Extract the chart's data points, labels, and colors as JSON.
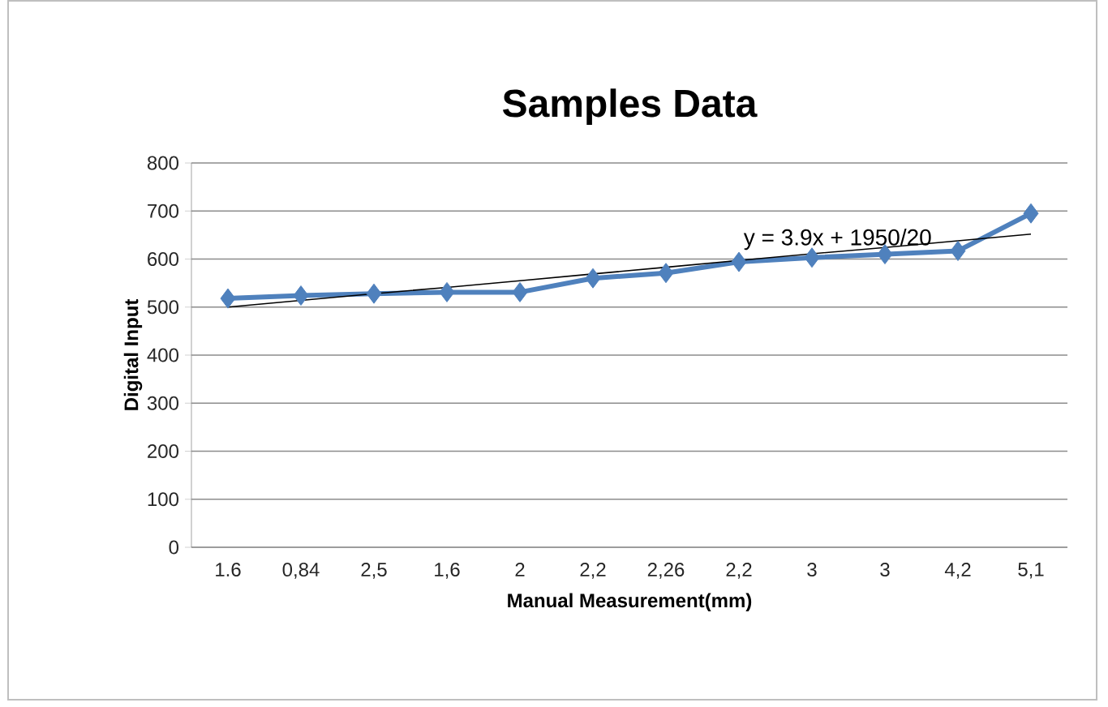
{
  "chart_data": {
    "type": "line",
    "title": "Samples Data",
    "xlabel": "Manual Measurement(mm)",
    "ylabel": "Digital Input",
    "categories": [
      "1.6",
      "0,84",
      "2,5",
      "1,6",
      "2",
      "2,2",
      "2,26",
      "2,2",
      "3",
      "3",
      "4,2",
      "5,1"
    ],
    "series": [
      {
        "color": "#4f81bd",
        "marker": "diamond",
        "values": [
          518,
          524,
          528,
          531,
          531,
          560,
          571,
          594,
          603,
          610,
          617,
          695
        ]
      },
      {
        "color": "#000000",
        "marker": "none",
        "values": [
          500,
          514,
          528,
          541,
          555,
          569,
          583,
          597,
          611,
          624,
          638,
          652
        ]
      }
    ],
    "ylim": [
      0,
      800
    ],
    "yticks": [
      0,
      100,
      200,
      300,
      400,
      500,
      600,
      700,
      800
    ],
    "grid": "y",
    "annotations": [
      "y = 3.9x + 1950/20"
    ]
  }
}
